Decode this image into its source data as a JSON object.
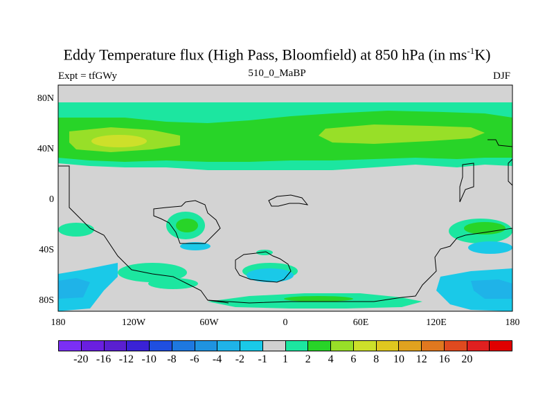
{
  "title_main": "Eddy Temperature flux (High Pass, Bloomfield) at 850 hPa (in ms",
  "title_sup": "-1",
  "title_end": "K)",
  "expt_label": "Expt = tfGWy",
  "run_label": "510_0_MaBP",
  "season_label": "DJF",
  "lat_ticks": [
    "80N",
    "40N",
    "0",
    "40S",
    "80S"
  ],
  "lon_ticks": [
    "180",
    "120W",
    "60W",
    "0",
    "60E",
    "120E",
    "180"
  ],
  "colorbar": {
    "colors": [
      "#7b2ff5",
      "#6a1fe0",
      "#5a1fd0",
      "#3a22d6",
      "#1f4fe0",
      "#1e78e0",
      "#1f93e0",
      "#1fb3e8",
      "#1ac9e8",
      "#d0d0d0",
      "#1ce6a0",
      "#28d428",
      "#98df28",
      "#cde02a",
      "#e0c81f",
      "#e0a21f",
      "#e0781f",
      "#e04a1f",
      "#e02020",
      "#e00000"
    ],
    "labels": [
      "-20",
      "-16",
      "-12",
      "-10",
      "-8",
      "-6",
      "-4",
      "-2",
      "-1",
      "1",
      "2",
      "4",
      "6",
      "8",
      "10",
      "12",
      "16",
      "20"
    ]
  },
  "colors": {
    "land_gray": "#d3d3d3",
    "band_light": "#1ce6a0",
    "band_mid": "#28d428",
    "band_high": "#98df28",
    "band_peak": "#cde02a",
    "neg_light": "#1ac9e8",
    "neg_mid": "#1fb3e8"
  }
}
